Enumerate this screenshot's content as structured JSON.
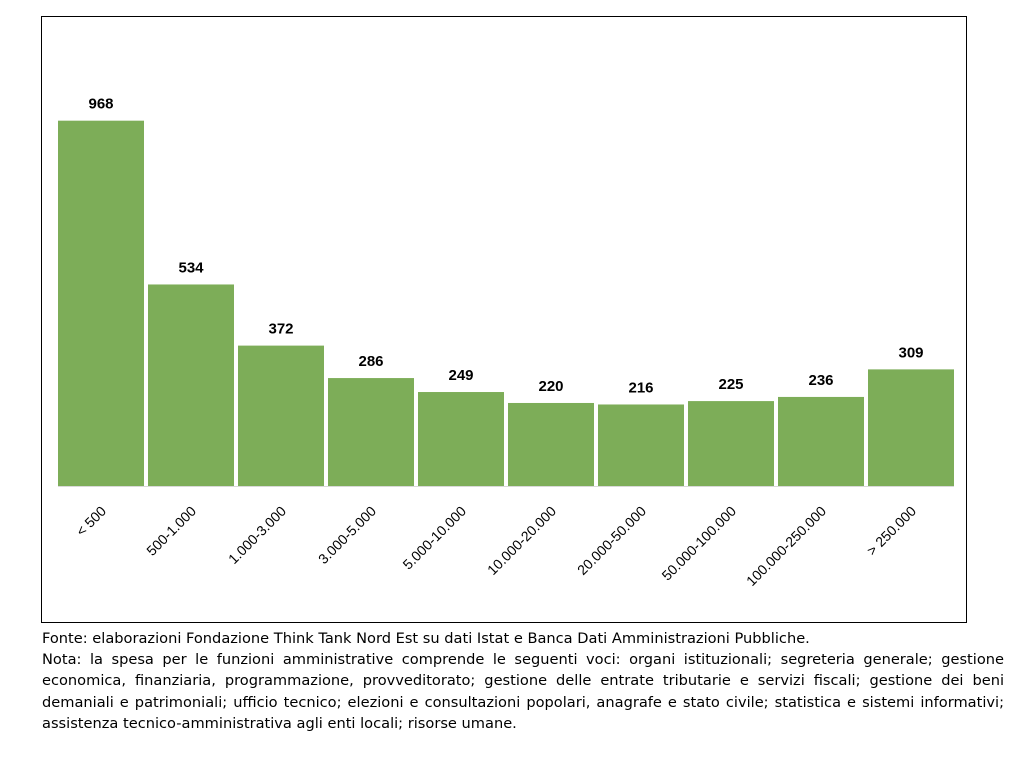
{
  "chart_data": {
    "type": "bar",
    "categories": [
      "< 500",
      "500-1.000",
      "1.000-3.000",
      "3.000-5.000",
      "5.000-10.000",
      "10.000-20.000",
      "20.000-50.000",
      "50.000-100.000",
      "100.000-250.000",
      "> 250.000"
    ],
    "values": [
      968,
      534,
      372,
      286,
      249,
      220,
      216,
      225,
      236,
      309
    ],
    "title": "",
    "xlabel": "",
    "ylabel": "",
    "ylim": [
      0,
      1000
    ],
    "grid": false,
    "legend": "none",
    "bar_color": "#7DAD58"
  },
  "footnote": {
    "source": "Fonte: elaborazioni Fondazione Think Tank Nord Est su dati Istat e Banca Dati Amministrazioni Pubbliche.",
    "note": "Nota: la spesa per le funzioni amministrative comprende le seguenti voci: organi istituzionali; segreteria generale; gestione economica, finanziaria, programmazione, provveditorato; gestione delle entrate tributarie e servizi fiscali; gestione dei beni demaniali e patrimoniali; ufficio tecnico; elezioni e consultazioni popolari, anagrafe e stato civile; statistica e sistemi informativi; assistenza tecnico-amministrativa agli enti locali; risorse umane."
  }
}
